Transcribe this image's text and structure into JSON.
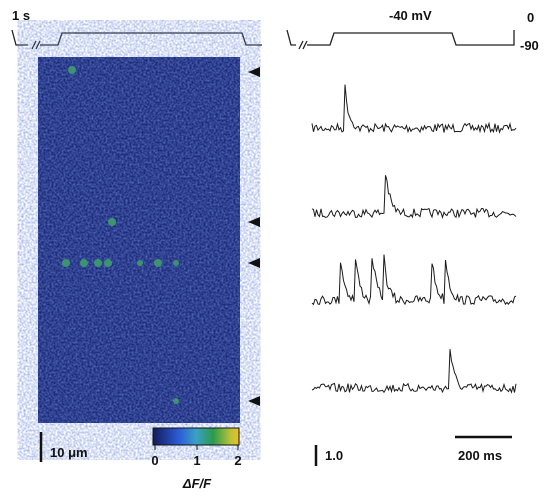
{
  "figure": {
    "protocol_left": {
      "label": "1 s"
    },
    "protocol_right": {
      "label": "-40 mV",
      "top_level": "0",
      "bottom_level": "-90"
    },
    "colorbar": {
      "ticks": [
        "0",
        "1",
        "2"
      ],
      "label": "ΔF/F"
    },
    "scale_bars": {
      "space": "10 μm",
      "amplitude": "1.0",
      "time": "200 ms"
    }
  }
}
